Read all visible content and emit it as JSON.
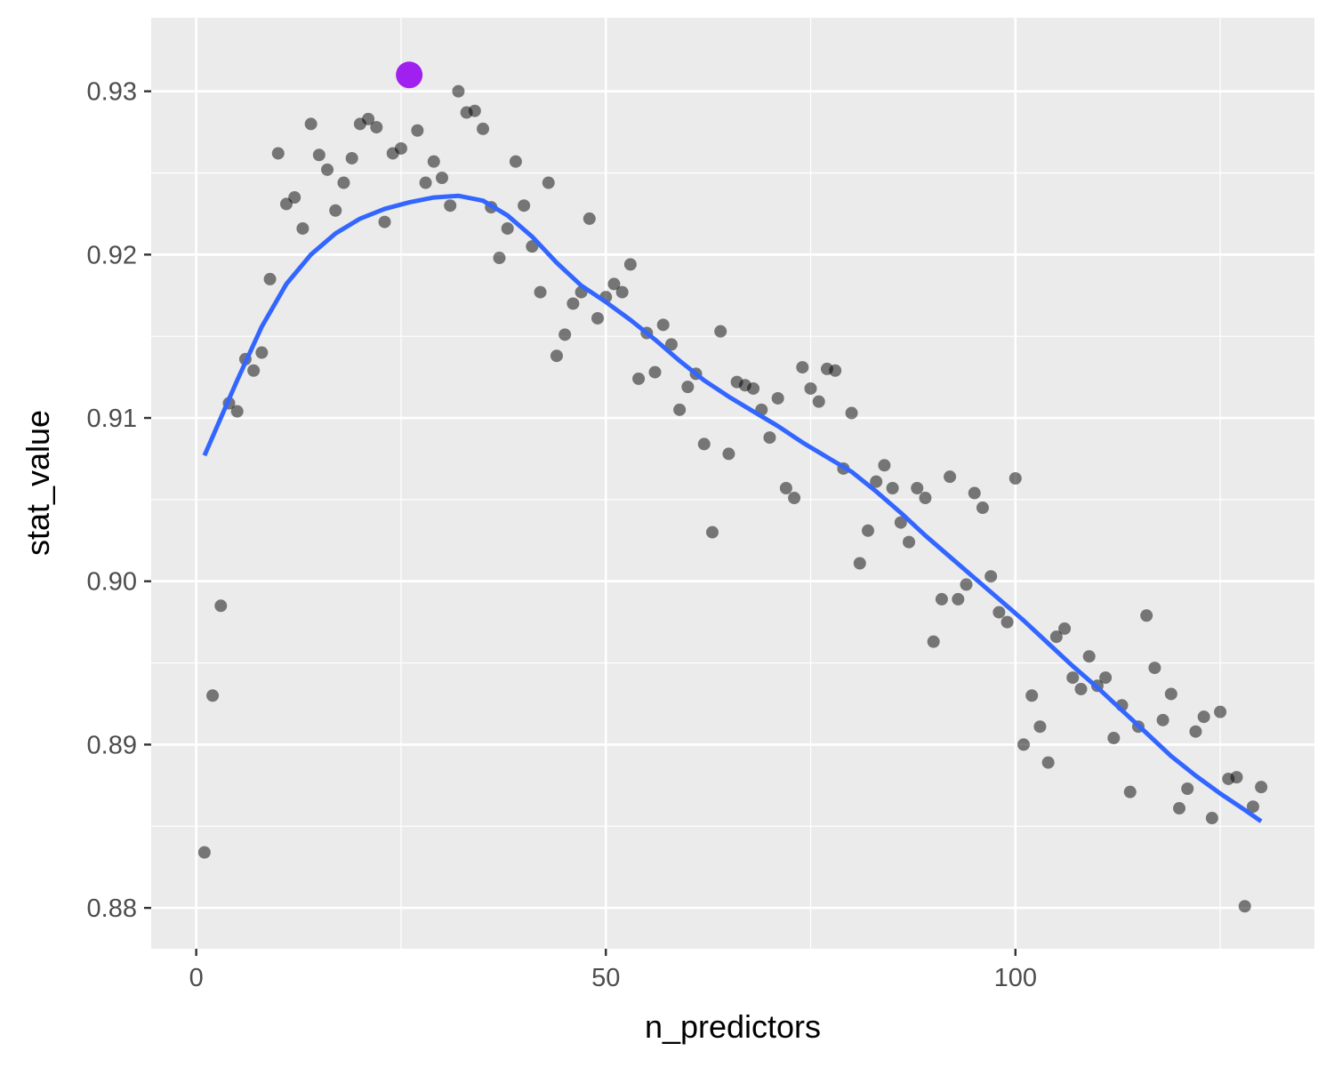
{
  "chart_data": {
    "type": "scatter",
    "xlabel": "n_predictors",
    "ylabel": "stat_value",
    "xlim": [
      -5.5,
      136.5
    ],
    "ylim": [
      0.8775,
      0.9345
    ],
    "x_ticks": [
      0,
      50,
      100
    ],
    "x_tick_labels": [
      "0",
      "50",
      "100"
    ],
    "y_ticks": [
      0.88,
      0.89,
      0.9,
      0.91,
      0.92,
      0.93
    ],
    "y_tick_labels": [
      "0.88",
      "0.89",
      "0.90",
      "0.91",
      "0.92",
      "0.93"
    ],
    "grid": true,
    "colors": {
      "panel_background": "#ebebeb",
      "grid": "#ffffff",
      "points": "#000000",
      "smooth_line": "#3366ff",
      "highlight_point": "#a020f0"
    },
    "points": [
      [
        1,
        0.8834
      ],
      [
        2,
        0.893
      ],
      [
        3,
        0.8985
      ],
      [
        4,
        0.9109
      ],
      [
        5,
        0.9104
      ],
      [
        6,
        0.9136
      ],
      [
        7,
        0.9129
      ],
      [
        8,
        0.914
      ],
      [
        9,
        0.9185
      ],
      [
        10,
        0.9262
      ],
      [
        11,
        0.9231
      ],
      [
        12,
        0.9235
      ],
      [
        13,
        0.9216
      ],
      [
        14,
        0.928
      ],
      [
        15,
        0.9261
      ],
      [
        16,
        0.9252
      ],
      [
        17,
        0.9227
      ],
      [
        18,
        0.9244
      ],
      [
        19,
        0.9259
      ],
      [
        20,
        0.928
      ],
      [
        21,
        0.9283
      ],
      [
        22,
        0.9278
      ],
      [
        23,
        0.922
      ],
      [
        24,
        0.9262
      ],
      [
        25,
        0.9265
      ],
      [
        27,
        0.9276
      ],
      [
        28,
        0.9244
      ],
      [
        29,
        0.9257
      ],
      [
        30,
        0.9247
      ],
      [
        31,
        0.923
      ],
      [
        32,
        0.93
      ],
      [
        33,
        0.9287
      ],
      [
        34,
        0.9288
      ],
      [
        35,
        0.9277
      ],
      [
        36,
        0.9229
      ],
      [
        37,
        0.9198
      ],
      [
        38,
        0.9216
      ],
      [
        39,
        0.9257
      ],
      [
        40,
        0.923
      ],
      [
        41,
        0.9205
      ],
      [
        42,
        0.9177
      ],
      [
        43,
        0.9244
      ],
      [
        44,
        0.9138
      ],
      [
        45,
        0.9151
      ],
      [
        46,
        0.917
      ],
      [
        47,
        0.9177
      ],
      [
        48,
        0.9222
      ],
      [
        49,
        0.9161
      ],
      [
        50,
        0.9174
      ],
      [
        51,
        0.9182
      ],
      [
        52,
        0.9177
      ],
      [
        53,
        0.9194
      ],
      [
        54,
        0.9124
      ],
      [
        55,
        0.9152
      ],
      [
        56,
        0.9128
      ],
      [
        57,
        0.9157
      ],
      [
        58,
        0.9145
      ],
      [
        59,
        0.9105
      ],
      [
        60,
        0.9119
      ],
      [
        61,
        0.9127
      ],
      [
        62,
        0.9084
      ],
      [
        63,
        0.903
      ],
      [
        64,
        0.9153
      ],
      [
        65,
        0.9078
      ],
      [
        66,
        0.9122
      ],
      [
        67,
        0.912
      ],
      [
        68,
        0.9118
      ],
      [
        69,
        0.9105
      ],
      [
        70,
        0.9088
      ],
      [
        71,
        0.9112
      ],
      [
        72,
        0.9057
      ],
      [
        73,
        0.9051
      ],
      [
        74,
        0.9131
      ],
      [
        75,
        0.9118
      ],
      [
        76,
        0.911
      ],
      [
        77,
        0.913
      ],
      [
        78,
        0.9129
      ],
      [
        80,
        0.9103
      ],
      [
        79,
        0.9069
      ],
      [
        81,
        0.9011
      ],
      [
        82,
        0.9031
      ],
      [
        83,
        0.9061
      ],
      [
        84,
        0.9071
      ],
      [
        85,
        0.9057
      ],
      [
        86,
        0.9036
      ],
      [
        87,
        0.9024
      ],
      [
        88,
        0.9057
      ],
      [
        89,
        0.9051
      ],
      [
        90,
        0.8963
      ],
      [
        91,
        0.8989
      ],
      [
        92,
        0.9064
      ],
      [
        93,
        0.8989
      ],
      [
        94,
        0.8998
      ],
      [
        95,
        0.9054
      ],
      [
        96,
        0.9045
      ],
      [
        97,
        0.9003
      ],
      [
        98,
        0.8981
      ],
      [
        99,
        0.8975
      ],
      [
        100,
        0.9063
      ],
      [
        101,
        0.89
      ],
      [
        102,
        0.893
      ],
      [
        103,
        0.8911
      ],
      [
        104,
        0.8889
      ],
      [
        105,
        0.8966
      ],
      [
        106,
        0.8971
      ],
      [
        107,
        0.8941
      ],
      [
        108,
        0.8934
      ],
      [
        109,
        0.8954
      ],
      [
        110,
        0.8936
      ],
      [
        111,
        0.8941
      ],
      [
        112,
        0.8904
      ],
      [
        113,
        0.8924
      ],
      [
        114,
        0.8871
      ],
      [
        115,
        0.8911
      ],
      [
        116,
        0.8979
      ],
      [
        117,
        0.8947
      ],
      [
        118,
        0.8915
      ],
      [
        119,
        0.8931
      ],
      [
        120,
        0.8861
      ],
      [
        121,
        0.8873
      ],
      [
        122,
        0.8908
      ],
      [
        123,
        0.8917
      ],
      [
        124,
        0.8855
      ],
      [
        125,
        0.892
      ],
      [
        126,
        0.8879
      ],
      [
        127,
        0.888
      ],
      [
        128,
        0.8801
      ],
      [
        129,
        0.8862
      ],
      [
        130,
        0.8874
      ]
    ],
    "highlight": {
      "x": 26,
      "y": 0.931
    },
    "smooth": [
      [
        1,
        0.9077
      ],
      [
        3,
        0.91
      ],
      [
        5,
        0.9123
      ],
      [
        8,
        0.9156
      ],
      [
        11,
        0.9182
      ],
      [
        14,
        0.92
      ],
      [
        17,
        0.9213
      ],
      [
        20,
        0.9222
      ],
      [
        23,
        0.9228
      ],
      [
        26,
        0.9232
      ],
      [
        29,
        0.9235
      ],
      [
        32,
        0.9236
      ],
      [
        35,
        0.9233
      ],
      [
        38,
        0.9224
      ],
      [
        41,
        0.9211
      ],
      [
        44,
        0.9195
      ],
      [
        47,
        0.9181
      ],
      [
        50,
        0.9171
      ],
      [
        53,
        0.916
      ],
      [
        56,
        0.9148
      ],
      [
        59,
        0.9135
      ],
      [
        62,
        0.9123
      ],
      [
        65,
        0.9113
      ],
      [
        68,
        0.9104
      ],
      [
        71,
        0.9095
      ],
      [
        74,
        0.9085
      ],
      [
        77,
        0.9076
      ],
      [
        80,
        0.9067
      ],
      [
        83,
        0.9055
      ],
      [
        86,
        0.9042
      ],
      [
        89,
        0.9028
      ],
      [
        92,
        0.9015
      ],
      [
        95,
        0.9002
      ],
      [
        98,
        0.8989
      ],
      [
        101,
        0.8976
      ],
      [
        104,
        0.8962
      ],
      [
        107,
        0.8948
      ],
      [
        110,
        0.8935
      ],
      [
        113,
        0.8921
      ],
      [
        116,
        0.8907
      ],
      [
        119,
        0.8893
      ],
      [
        122,
        0.8881
      ],
      [
        125,
        0.887
      ],
      [
        128,
        0.886
      ],
      [
        130,
        0.8853
      ]
    ]
  }
}
